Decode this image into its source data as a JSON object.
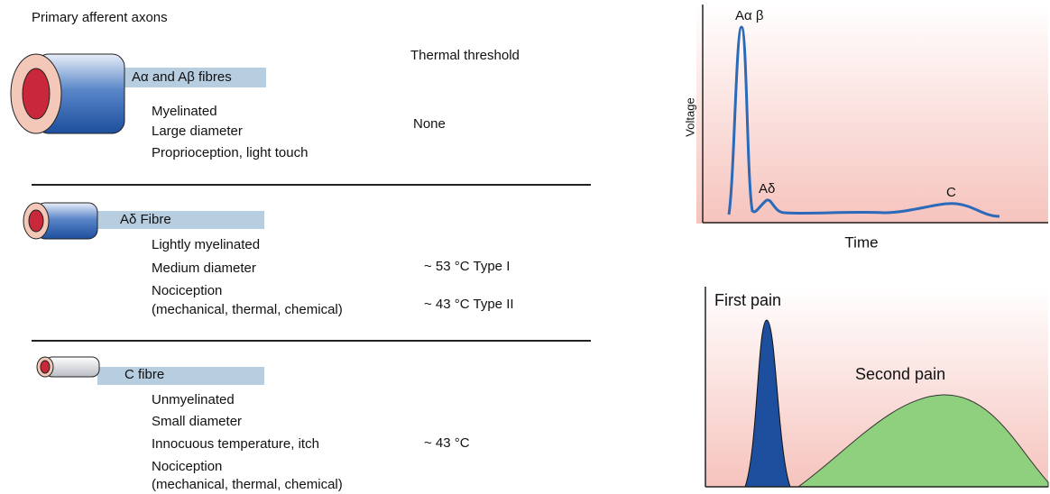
{
  "title": "Primary afferent axons",
  "threshold_header": "Thermal threshold",
  "fibres": [
    {
      "name": "Aα and Aβ fibres",
      "properties": [
        "Myelinated",
        "Large diameter",
        "Proprioception, light touch"
      ],
      "thresholds": [
        "None"
      ]
    },
    {
      "name": "Aδ Fibre",
      "properties": [
        "Lightly myelinated",
        "Medium diameter",
        "Nociception",
        "(mechanical, thermal, chemical)"
      ],
      "thresholds": [
        "~ 53 °C Type I",
        "~ 43 °C Type II"
      ]
    },
    {
      "name": "C fibre",
      "properties": [
        "Unmyelinated",
        "Small diameter",
        "Innocuous temperature, itch",
        "Nociception",
        "(mechanical, thermal, chemical)"
      ],
      "thresholds": [
        "~ 43 °C"
      ]
    }
  ],
  "action_potential": {
    "y_label": "Voltage",
    "x_label": "Time",
    "peaks": [
      "Aα β",
      "Aδ",
      "C"
    ]
  },
  "pain": {
    "first": "First pain",
    "second": "Second pain"
  }
}
